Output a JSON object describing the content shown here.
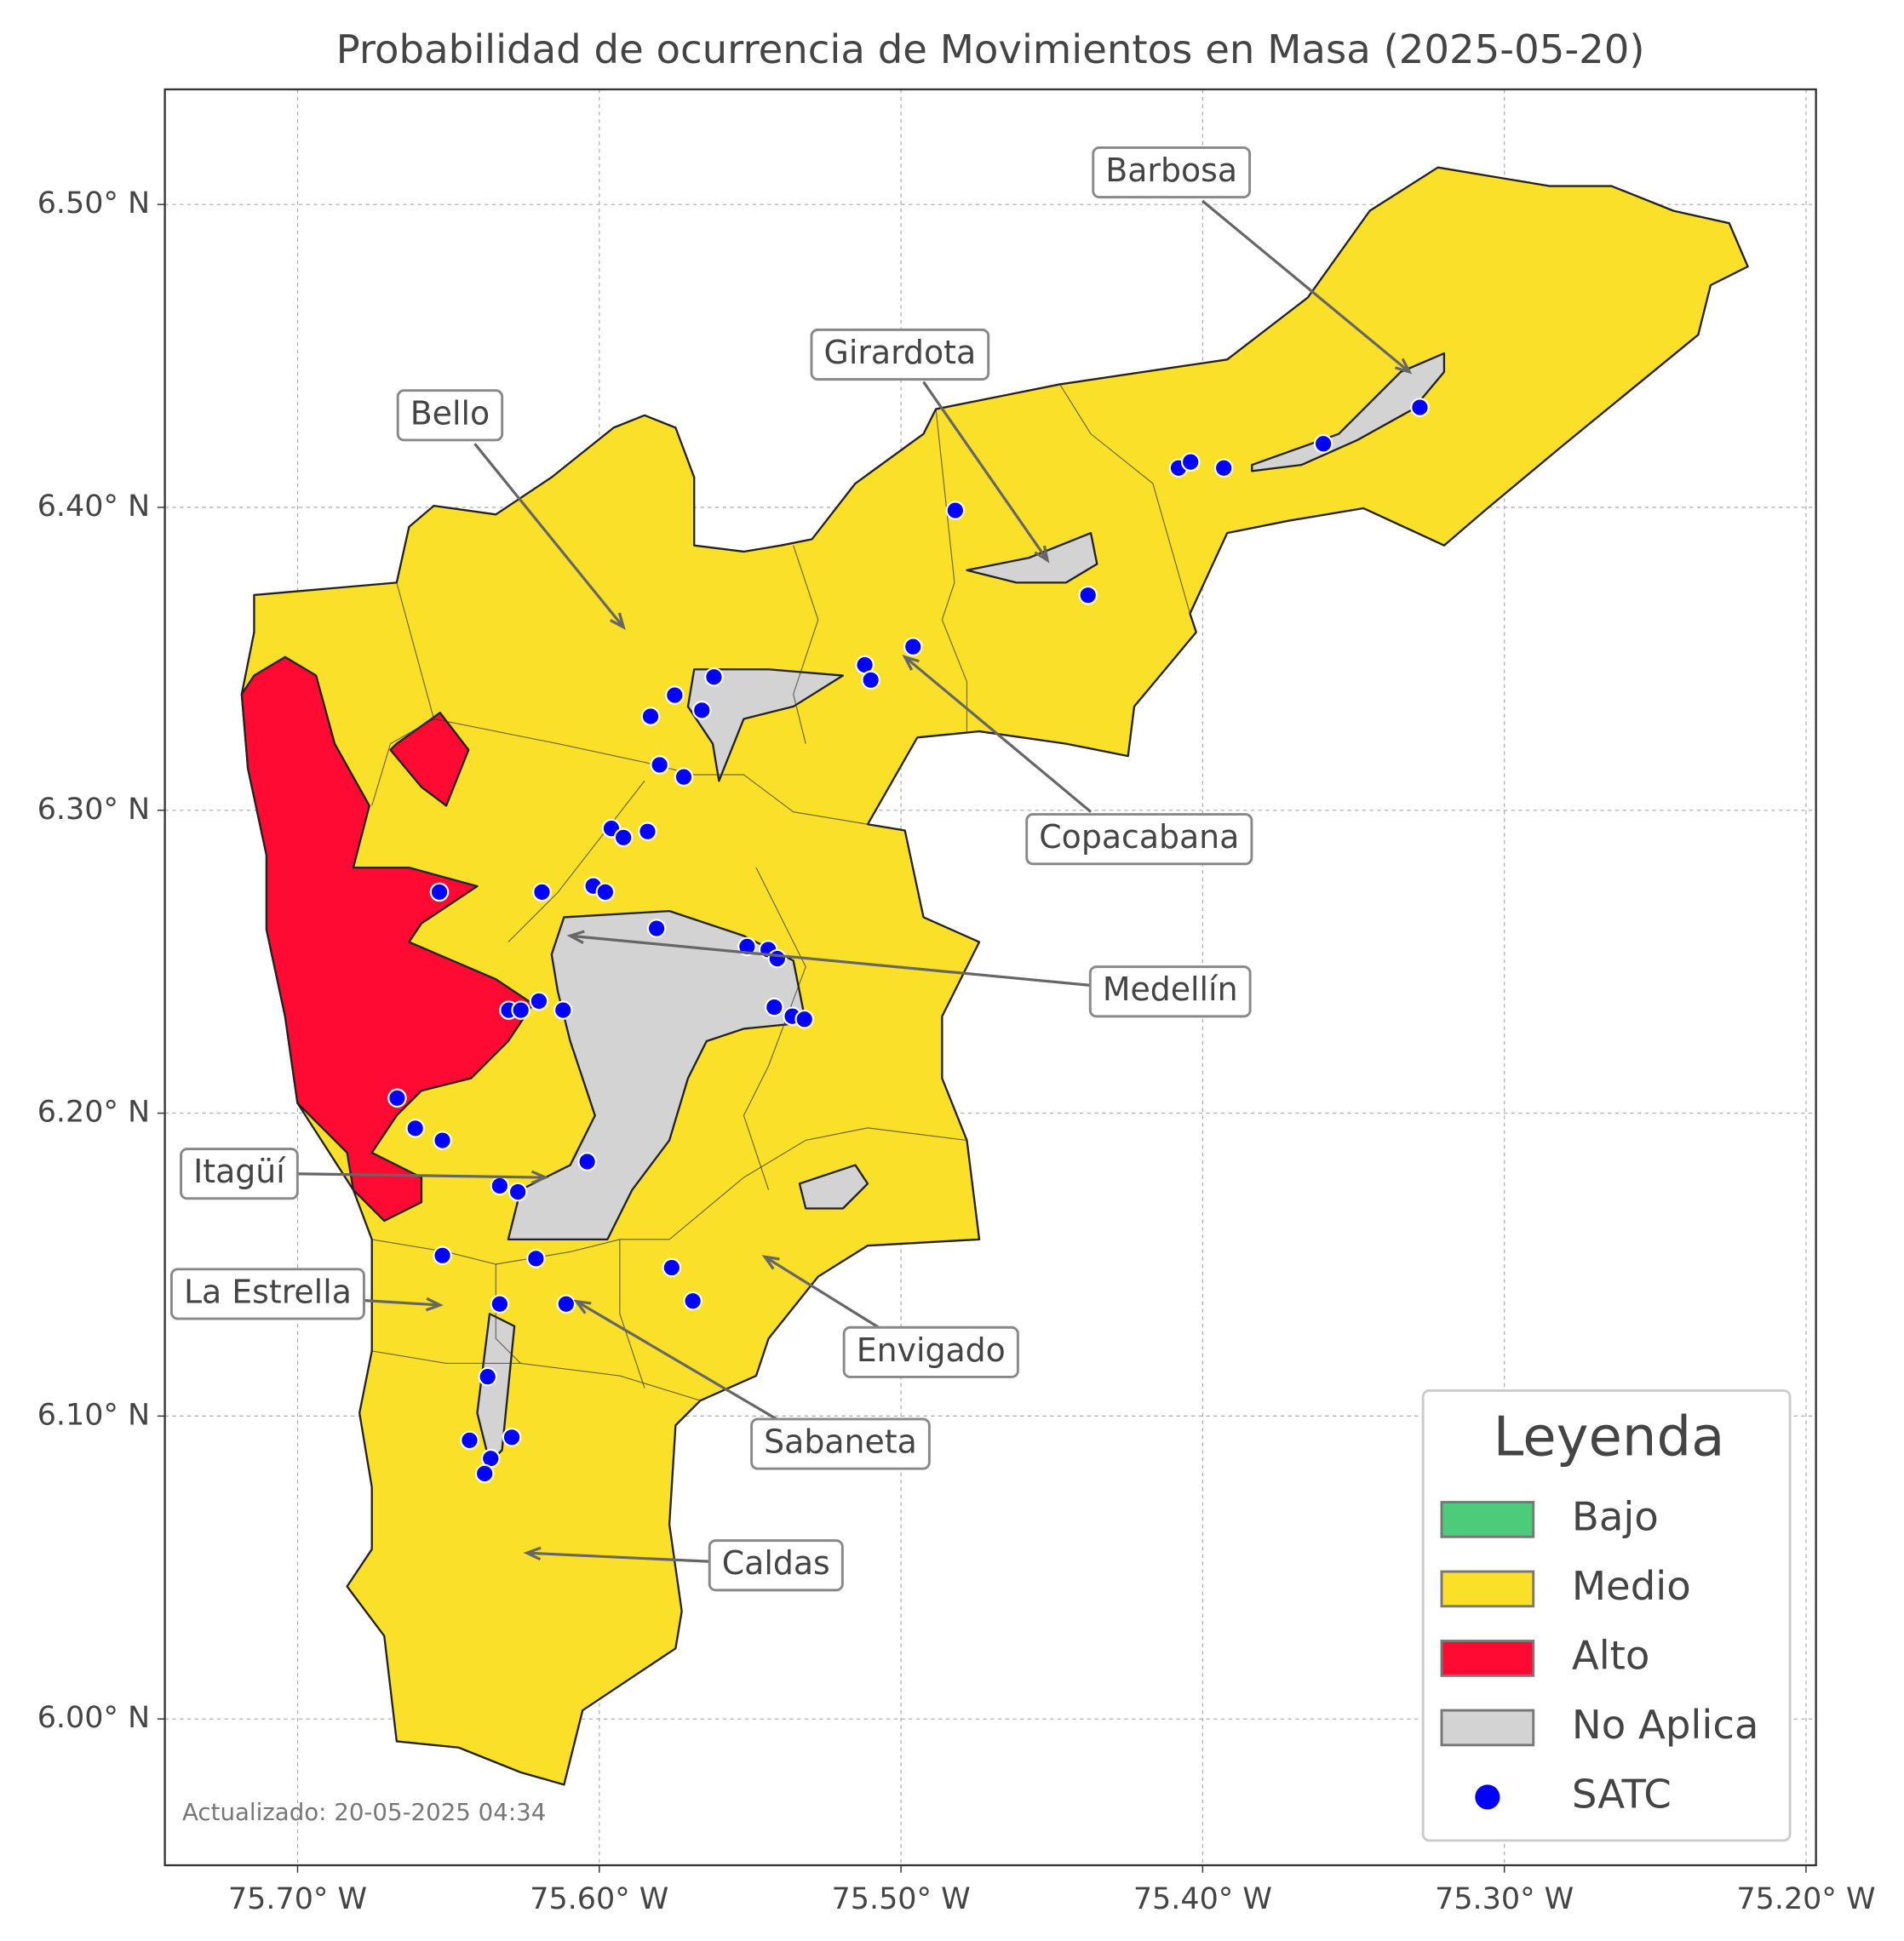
{
  "chart_data": {
    "type": "map",
    "title": "Probabilidad de ocurrencia de Movimientos en Masa (2025-05-20)",
    "xlim": [
      -75.744,
      -75.1967
    ],
    "ylim": [
      5.9517,
      6.538
    ],
    "xticks": [
      {
        "value": -75.7,
        "label": "75.70° W"
      },
      {
        "value": -75.6,
        "label": "75.60° W"
      },
      {
        "value": -75.5,
        "label": "75.50° W"
      },
      {
        "value": -75.4,
        "label": "75.40° W"
      },
      {
        "value": -75.3,
        "label": "75.30° W"
      },
      {
        "value": -75.2,
        "label": "75.20° W"
      }
    ],
    "yticks": [
      {
        "value": 6.0,
        "label": "6.00° N"
      },
      {
        "value": 6.1,
        "label": "6.10° N"
      },
      {
        "value": 6.2,
        "label": "6.20° N"
      },
      {
        "value": 6.3,
        "label": "6.30° N"
      },
      {
        "value": 6.4,
        "label": "6.40° N"
      },
      {
        "value": 6.5,
        "label": "6.50° N"
      }
    ],
    "grid": true,
    "legend": {
      "title": "Leyenda",
      "position": "lower right",
      "items": [
        {
          "name": "Bajo",
          "color": "#4ccb7a"
        },
        {
          "name": "Medio",
          "color": "#fbe02a"
        },
        {
          "name": "Alto",
          "color": "#ff0a33"
        },
        {
          "name": "No Aplica",
          "color": "#d3d3d3"
        }
      ]
    },
    "series": [
      {
        "name": "SATC",
        "color": "#0000ff",
        "x": [
          -75.482,
          -75.408,
          -75.404,
          -75.393,
          -75.36,
          -75.328,
          -75.438,
          -75.496,
          -75.512,
          -75.51,
          -75.562,
          -75.575,
          -75.566,
          -75.583,
          -75.58,
          -75.572,
          -75.596,
          -75.592,
          -75.584,
          -75.653,
          -75.619,
          -75.602,
          -75.598,
          -75.581,
          -75.551,
          -75.544,
          -75.541,
          -75.542,
          -75.536,
          -75.532,
          -75.63,
          -75.626,
          -75.62,
          -75.612,
          -75.667,
          -75.661,
          -75.652,
          -75.604,
          -75.633,
          -75.627,
          -75.652,
          -75.621,
          -75.576,
          -75.569,
          -75.633,
          -75.611,
          -75.637,
          -75.643,
          -75.629,
          -75.636,
          -75.638
        ],
        "y": [
          6.399,
          6.413,
          6.415,
          6.413,
          6.421,
          6.433,
          6.371,
          6.354,
          6.348,
          6.343,
          6.344,
          6.338,
          6.333,
          6.331,
          6.315,
          6.311,
          6.294,
          6.291,
          6.293,
          6.273,
          6.273,
          6.275,
          6.273,
          6.261,
          6.255,
          6.254,
          6.251,
          6.235,
          6.232,
          6.231,
          6.234,
          6.234,
          6.237,
          6.234,
          6.205,
          6.195,
          6.191,
          6.184,
          6.176,
          6.174,
          6.153,
          6.152,
          6.149,
          6.138,
          6.137,
          6.137,
          6.113,
          6.092,
          6.093,
          6.086,
          6.081
        ]
      }
    ],
    "annotations": [
      {
        "text": "Barbosa"
      },
      {
        "text": "Girardota"
      },
      {
        "text": "Bello"
      },
      {
        "text": "Copacabana"
      },
      {
        "text": "Medellín"
      },
      {
        "text": "Itagüí"
      },
      {
        "text": "La Estrella"
      },
      {
        "text": "Envigado"
      },
      {
        "text": "Sabaneta"
      },
      {
        "text": "Caldas"
      }
    ],
    "footnote": "Actualizado: 20-05-2025 04:34"
  }
}
